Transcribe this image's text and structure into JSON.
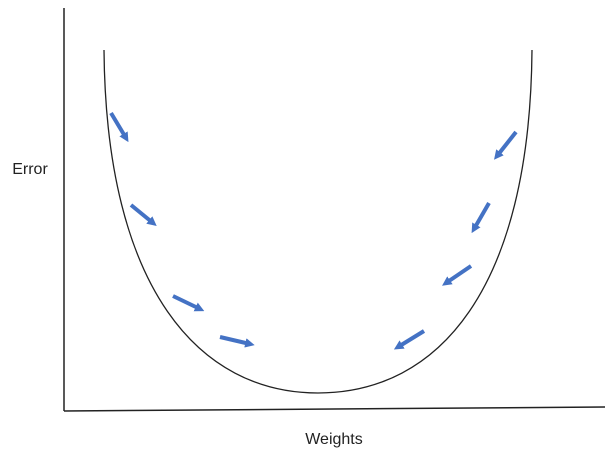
{
  "axes": {
    "y_label": "Error",
    "x_label": "Weights"
  }
}
